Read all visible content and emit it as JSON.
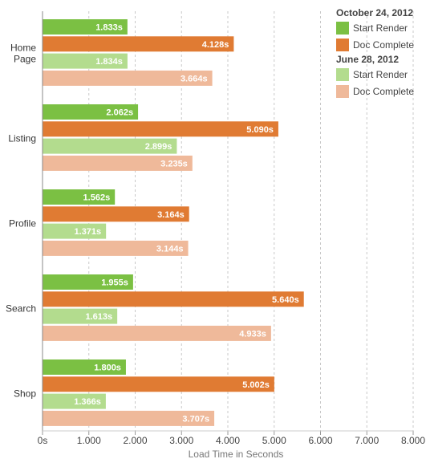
{
  "chart_data": {
    "type": "bar",
    "orientation": "horizontal",
    "categories": [
      "Home\nPage",
      "Listing",
      "Profile",
      "Search",
      "Shop"
    ],
    "series": [
      {
        "name": "Start Render",
        "group": "October 24, 2012",
        "color": "#7bc043",
        "values": [
          1.833,
          2.062,
          1.562,
          1.955,
          1.8
        ]
      },
      {
        "name": "Doc Complete",
        "group": "October 24, 2012",
        "color": "#e07b33",
        "values": [
          4.128,
          5.09,
          3.164,
          5.64,
          5.002
        ]
      },
      {
        "name": "Start Render",
        "group": "June 28, 2012",
        "color": "#b3dc8e",
        "values": [
          1.834,
          2.899,
          1.371,
          1.613,
          1.366
        ]
      },
      {
        "name": "Doc Complete",
        "group": "June 28, 2012",
        "color": "#efb99a",
        "values": [
          3.664,
          3.235,
          3.144,
          4.933,
          3.707
        ]
      }
    ],
    "xlim": [
      0,
      8
    ],
    "xticks": [
      0,
      1,
      2,
      3,
      4,
      5,
      6,
      7,
      8
    ],
    "xtick_labels": [
      "0s",
      "1.000",
      "2.000",
      "3.000",
      "4.000",
      "5.000",
      "6.000",
      "7.000",
      "8.000"
    ],
    "xlabel": "Load Time in Seconds",
    "value_suffix": "s",
    "grid": "vertical-dashed",
    "legend": {
      "placement": "top-right",
      "groups": [
        {
          "title": "October 24, 2012",
          "items": [
            {
              "label": "Start Render",
              "color": "#7bc043"
            },
            {
              "label": "Doc Complete",
              "color": "#e07b33"
            }
          ]
        },
        {
          "title": "June 28, 2012",
          "items": [
            {
              "label": "Start Render",
              "color": "#b3dc8e"
            },
            {
              "label": "Doc Complete",
              "color": "#efb99a"
            }
          ]
        }
      ]
    }
  }
}
